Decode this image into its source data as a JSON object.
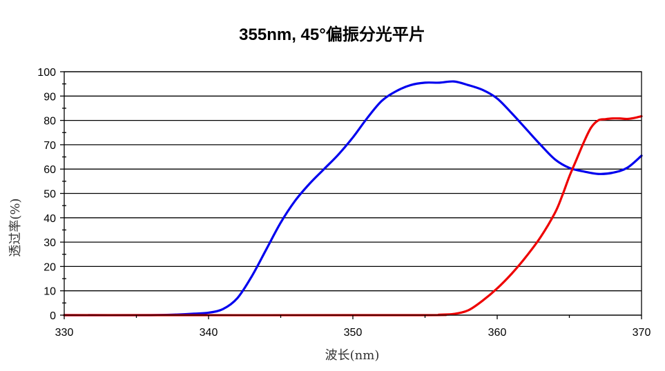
{
  "chart_data": {
    "type": "line",
    "title": "355nm, 45°偏振分光平片",
    "xlabel": "波长(nm)",
    "ylabel": "透过率(%)",
    "xlim": [
      330,
      370
    ],
    "ylim": [
      0,
      100
    ],
    "x_ticks": [
      330,
      340,
      350,
      360,
      370
    ],
    "y_ticks": [
      0,
      10,
      20,
      30,
      40,
      50,
      60,
      70,
      80,
      90,
      100
    ],
    "grid": true,
    "legend": "none",
    "series": [
      {
        "color": "#0000ee",
        "points": [
          [
            330,
            0
          ],
          [
            336,
            0
          ],
          [
            338,
            0.3
          ],
          [
            339,
            0.6
          ],
          [
            340,
            1
          ],
          [
            341,
            2.5
          ],
          [
            342,
            7
          ],
          [
            343,
            16
          ],
          [
            344,
            27
          ],
          [
            345,
            38
          ],
          [
            346,
            47
          ],
          [
            347,
            54
          ],
          [
            348,
            60
          ],
          [
            349,
            66
          ],
          [
            350,
            73
          ],
          [
            351,
            81
          ],
          [
            352,
            88
          ],
          [
            353,
            92
          ],
          [
            354,
            94.5
          ],
          [
            355,
            95.5
          ],
          [
            356,
            95.5
          ],
          [
            357,
            96
          ],
          [
            358,
            94.5
          ],
          [
            359,
            92.5
          ],
          [
            360,
            89
          ],
          [
            361,
            83
          ],
          [
            362,
            76.5
          ],
          [
            363,
            70
          ],
          [
            364,
            64
          ],
          [
            365,
            60.5
          ],
          [
            366,
            59
          ],
          [
            367,
            58
          ],
          [
            368,
            58.5
          ],
          [
            369,
            60.5
          ],
          [
            370,
            65.5
          ]
        ]
      },
      {
        "color": "#ee0000",
        "points": [
          [
            330,
            0
          ],
          [
            354,
            0
          ],
          [
            356,
            0.2
          ],
          [
            357,
            0.5
          ],
          [
            358,
            2
          ],
          [
            359,
            6
          ],
          [
            360,
            11
          ],
          [
            361,
            17
          ],
          [
            362,
            24
          ],
          [
            363,
            32
          ],
          [
            364,
            42
          ],
          [
            364.5,
            49
          ],
          [
            365,
            57
          ],
          [
            365.5,
            64
          ],
          [
            366,
            71
          ],
          [
            366.5,
            77
          ],
          [
            367,
            80
          ],
          [
            367.5,
            80.5
          ],
          [
            368,
            80.8
          ],
          [
            368.5,
            80.8
          ],
          [
            369,
            80.6
          ],
          [
            369.5,
            81
          ],
          [
            370,
            81.7
          ]
        ]
      }
    ]
  }
}
